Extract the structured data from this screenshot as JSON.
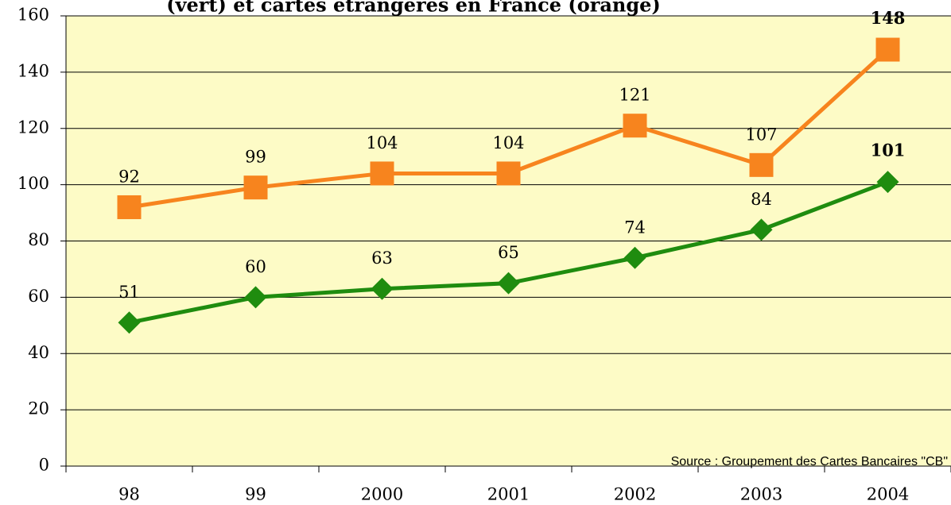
{
  "chart_data": {
    "type": "line",
    "title": "(vert)  et cartes étrangères en France (orange)",
    "annotation": "Source : Groupement des Cartes Bancaires \"CB\"",
    "categories": [
      "98",
      "99",
      "2000",
      "2001",
      "2002",
      "2003",
      "2004"
    ],
    "series": [
      {
        "color": "#f7841e",
        "marker": "square",
        "values": [
          92,
          99,
          104,
          104,
          121,
          107,
          148
        ]
      },
      {
        "color": "#1f8c0f",
        "marker": "diamond",
        "values": [
          51,
          60,
          63,
          65,
          74,
          84,
          101
        ]
      }
    ],
    "ylim": [
      0,
      160
    ],
    "yticks": [
      0,
      20,
      40,
      60,
      80,
      100,
      120,
      140,
      160
    ],
    "grid": true,
    "background": "#fdfbc6"
  }
}
